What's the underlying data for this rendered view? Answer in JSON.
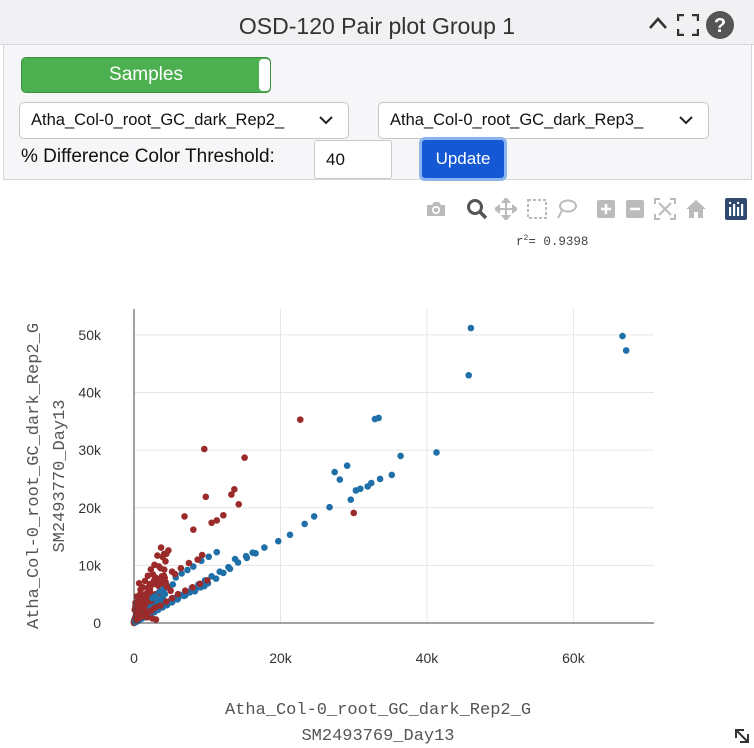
{
  "header": {
    "title": "OSD-120 Pair plot Group 1",
    "icons": [
      "chevron-up-icon",
      "fullscreen-icon",
      "help-icon"
    ]
  },
  "controls": {
    "samples_label": "Samples",
    "sample_x": "Atha_Col-0_root_GC_dark_Rep2_",
    "sample_y": "Atha_Col-0_root_GC_dark_Rep3_",
    "threshold_label": "% Difference Color Threshold:",
    "threshold_value": "40",
    "update_label": "Update"
  },
  "modebar": [
    "camera-icon",
    "zoom-icon",
    "pan-icon",
    "box-select-icon",
    "lasso-icon",
    "zoom-in-icon",
    "zoom-out-icon",
    "autoscale-icon",
    "reset-axes-icon",
    "plotly-logo-icon"
  ],
  "r2": {
    "label": "r",
    "sup": "2",
    "text": "= 0.9398"
  },
  "colors": {
    "similar": "#1f6fa8",
    "different": "#9b2a2a",
    "accent": "#1558d6",
    "toggle": "#4caf50"
  },
  "chart_data": {
    "type": "scatter",
    "xlabel_line1": "Atha_Col-0_root_GC_dark_Rep2_G",
    "xlabel_line2": "SM2493769_Day13",
    "ylabel_line1": "Atha_Col-0_root_GC_dark_Rep2_G",
    "ylabel_line2": "SM2493770_Day13",
    "xlim": [
      0,
      71000
    ],
    "ylim": [
      0,
      54500
    ],
    "x_ticks": [
      0,
      20000,
      40000,
      60000
    ],
    "x_tick_labels": [
      "0",
      "20k",
      "40k",
      "60k"
    ],
    "y_ticks": [
      0,
      10000,
      20000,
      30000,
      40000,
      50000
    ],
    "y_tick_labels": [
      "0",
      "10k",
      "20k",
      "30k",
      "40k",
      "50k"
    ],
    "grid": true,
    "series": [
      {
        "color": "#1f6fa8",
        "x": [
          46000,
          66700,
          67200,
          45700,
          41300,
          36400,
          33400,
          32900,
          35200,
          33600,
          32400,
          31900,
          30900,
          30300,
          29600,
          26700,
          24600,
          23300,
          21300,
          19700,
          29100,
          27400,
          28100,
          17800,
          16600,
          15400,
          14200,
          12900,
          11700,
          10600,
          9700,
          8800,
          7900,
          7100,
          6300,
          5600,
          4900,
          4300,
          3700,
          3100,
          2600,
          2100,
          1700,
          1300,
          1000,
          700,
          500,
          300,
          11300,
          13800,
          15300,
          16200,
          9200,
          10200,
          8100,
          7300,
          6500,
          5700,
          13100,
          12200,
          11200,
          10100,
          9100,
          8400,
          7600,
          6800,
          5900,
          5100,
          4400,
          3800,
          3200,
          2700,
          2200,
          1800,
          1400,
          9600,
          8300,
          7000,
          6000,
          5200,
          4500,
          3900,
          3300,
          2800,
          2300,
          1900,
          1500,
          1100,
          800,
          600,
          400,
          200,
          3500,
          4100,
          4700,
          5300,
          2500,
          2900
        ],
        "y": [
          51200,
          49800,
          47300,
          43000,
          29600,
          29000,
          35600,
          35400,
          25700,
          25000,
          24300,
          23700,
          23300,
          23000,
          21400,
          20100,
          18500,
          17200,
          15300,
          14200,
          27300,
          26200,
          24900,
          13100,
          12100,
          11300,
          10500,
          9700,
          8900,
          8100,
          7400,
          6700,
          6100,
          5500,
          4900,
          4300,
          3800,
          3300,
          2900,
          2500,
          2100,
          1700,
          1400,
          1100,
          800,
          600,
          400,
          200,
          12300,
          11100,
          11600,
          12200,
          10800,
          11500,
          9800,
          9200,
          8600,
          7900,
          9400,
          8700,
          7700,
          6900,
          6200,
          5800,
          5300,
          4700,
          4100,
          3600,
          3200,
          2800,
          2400,
          2000,
          1700,
          1400,
          1100,
          6400,
          5500,
          4800,
          4200,
          3600,
          3100,
          2700,
          2300,
          1900,
          1600,
          1300,
          1000,
          800,
          600,
          400,
          300,
          150,
          5500,
          5900,
          6300,
          6700,
          4300,
          4700
        ]
      },
      {
        "color": "#9b2a2a",
        "x": [
          22700,
          9600,
          15100,
          13700,
          13300,
          14300,
          9800,
          12200,
          6900,
          11300,
          8100,
          10600,
          30000,
          3700,
          4700,
          3200,
          4300,
          2800,
          5200,
          2300,
          3800,
          1900,
          2700,
          1500,
          3300,
          1200,
          2100,
          900,
          1700,
          600,
          1300,
          400,
          1000,
          200,
          700,
          100,
          500,
          300,
          1400,
          1800,
          2500,
          3000,
          2000,
          1600,
          900,
          700,
          3400,
          4200,
          5600,
          6400,
          7500,
          8700,
          9300,
          600,
          800,
          1100,
          1500,
          2200,
          2600,
          3500,
          4000,
          4500,
          5000,
          250,
          450,
          650,
          850,
          1050,
          1250,
          300,
          600,
          1000,
          1400,
          1900,
          2400,
          2900,
          3600,
          4400,
          5200,
          6000,
          7000,
          8000,
          9000,
          10000,
          200,
          400
        ],
        "y": [
          35300,
          30200,
          28700,
          23200,
          22300,
          20600,
          21900,
          18700,
          18500,
          17800,
          16200,
          17400,
          19100,
          13100,
          12600,
          11700,
          10700,
          10100,
          8900,
          9300,
          8100,
          8200,
          7300,
          7300,
          6500,
          6200,
          5500,
          5100,
          4600,
          4200,
          3800,
          3400,
          3100,
          2900,
          2500,
          2300,
          2000,
          1600,
          1300,
          1000,
          800,
          600,
          5700,
          5000,
          5800,
          6900,
          7200,
          7800,
          8500,
          9500,
          10400,
          11000,
          11800,
          2600,
          3400,
          4100,
          4900,
          6100,
          6800,
          7600,
          7000,
          6300,
          5600,
          1200,
          1600,
          2100,
          2700,
          3300,
          3900,
          500,
          800,
          1100,
          1500,
          1800,
          2200,
          2700,
          3000,
          3700,
          4300,
          5000,
          5600,
          6200,
          6800,
          7400,
          3500,
          4600
        ]
      }
    ]
  }
}
